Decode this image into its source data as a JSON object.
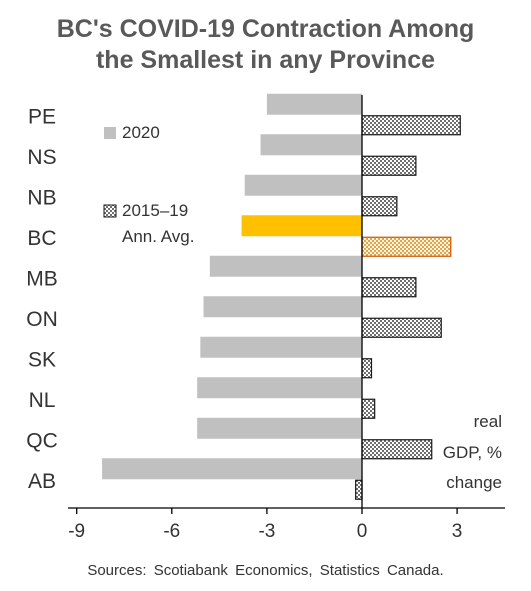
{
  "chart_data": {
    "type": "bar",
    "orientation": "horizontal",
    "title": "BC's COVID-19 Contraction Among the Smallest in any Province",
    "title_lines": [
      "BC's COVID-19 Contraction Among",
      "the Smallest in any Province"
    ],
    "categories": [
      "PE",
      "NS",
      "NB",
      "BC",
      "MB",
      "ON",
      "SK",
      "NL",
      "QC",
      "AB"
    ],
    "series": [
      {
        "name": "2020",
        "color": "#c0c0c0",
        "values": [
          -3.0,
          -3.2,
          -3.7,
          -3.8,
          -4.8,
          -5.0,
          -5.1,
          -5.2,
          -5.2,
          -8.2
        ]
      },
      {
        "name": "2015–19 Ann. Avg.",
        "color": "#7f7f7f",
        "pattern": "crosshatch",
        "values": [
          3.1,
          1.7,
          1.1,
          2.8,
          1.7,
          2.5,
          0.3,
          0.4,
          2.2,
          -0.2
        ]
      }
    ],
    "highlight": {
      "category": "BC",
      "colors": [
        "#ffc000",
        "#d35400"
      ]
    },
    "legend": [
      {
        "lines": [
          "2020"
        ],
        "series": 0
      },
      {
        "lines": [
          "2015–19",
          "Ann. Avg."
        ],
        "series": 1
      }
    ],
    "legend_position": "left",
    "axis_annotation": [
      "real",
      "GDP, %",
      "change"
    ],
    "xlim": [
      -9,
      4.5
    ],
    "xticks": [
      -9,
      -6,
      -3,
      0,
      3
    ],
    "xtick_labels": [
      "-9",
      "-6",
      "-3",
      "0",
      "3"
    ],
    "grid": false
  },
  "source": "Sources: Scotiabank Economics, Statistics Canada."
}
